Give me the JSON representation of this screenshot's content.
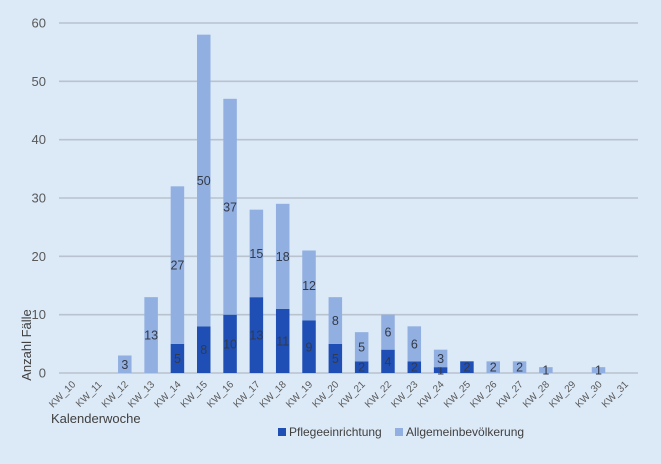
{
  "chart_data": {
    "type": "bar",
    "stacked": true,
    "title": "",
    "xlabel": "Kalenderwoche",
    "ylabel": "Anzahl Fälle",
    "ylim": [
      0,
      60
    ],
    "yticks": [
      0,
      10,
      20,
      30,
      40,
      50,
      60
    ],
    "grid": true,
    "legend_position": "bottom",
    "categories": [
      "KW_10",
      "KW_11",
      "KW_12",
      "KW_13",
      "KW_14",
      "KW_15",
      "KW_16",
      "KW_17",
      "KW_18",
      "KW_19",
      "KW_20",
      "KW_21",
      "KW_22",
      "KW_23",
      "KW_24",
      "KW_25",
      "KW_26",
      "KW_27",
      "KW_28",
      "KW_29",
      "KW_30",
      "KW_31"
    ],
    "series": [
      {
        "name": "Pflegeeinrichtung",
        "color": "#1f4fb5",
        "values": [
          0,
          0,
          0,
          0,
          5,
          8,
          10,
          13,
          11,
          9,
          5,
          2,
          4,
          2,
          1,
          2,
          0,
          0,
          0,
          0,
          0,
          0
        ]
      },
      {
        "name": "Allgemeinbevölkerung",
        "color": "#91afe0",
        "values": [
          0,
          0,
          3,
          13,
          27,
          50,
          37,
          15,
          18,
          12,
          8,
          5,
          6,
          6,
          3,
          0,
          2,
          2,
          1,
          0,
          1,
          0
        ]
      }
    ]
  },
  "colors": {
    "background": "#dce9f7",
    "gridline": "#b9c3cf",
    "pflege": "#1f4fb5",
    "allgemein": "#91afe0"
  }
}
